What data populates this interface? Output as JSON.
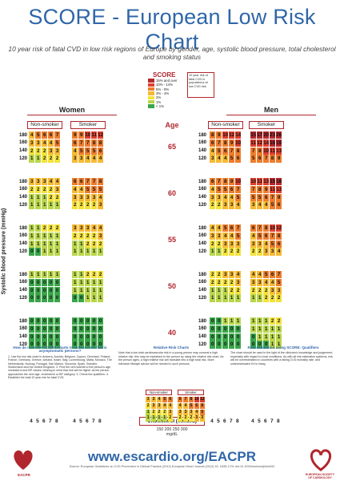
{
  "title": "SCORE - European Low Risk Chart",
  "subtitle": "10 year risk of fatal CVD in low risk regions of Europe by gender, age, systolic blood pressure, total cholesterol and smoking status",
  "score_logo": "SCORE",
  "legend": [
    {
      "label": "15% and over",
      "color": "#b5292e"
    },
    {
      "label": "10% - 14%",
      "color": "#e0402e"
    },
    {
      "label": "5% - 9%",
      "color": "#ee7d2d"
    },
    {
      "label": "3% - 4%",
      "color": "#f6b933"
    },
    {
      "label": "2%",
      "color": "#f4e23a"
    },
    {
      "label": "1%",
      "color": "#b9d64a"
    },
    {
      "label": "< 1%",
      "color": "#3aa54a"
    }
  ],
  "note_box": "10 year risk of fatal CVD in populations at low CVD risk",
  "headers": {
    "women": "Women",
    "men": "Men",
    "non_smoker": "Non-smoker",
    "smoker": "Smoker",
    "age": "Age"
  },
  "ages": [
    "65",
    "60",
    "55",
    "50",
    "40"
  ],
  "sbp_rows": [
    "180",
    "160",
    "140",
    "120"
  ],
  "sbp_label": "Systolic blood pressure (mmHg)",
  "chol_values": [
    "4",
    "5",
    "6",
    "7",
    "8"
  ],
  "chol_label": "Cholesterol (mmol/L)",
  "chol_mg_top": "150 200 250 300",
  "chol_mg_unit": "mg/dL",
  "women": {
    "non_smoker": [
      [
        [
          "4",
          "5",
          "6",
          "6",
          "7"
        ],
        [
          "3",
          "3",
          "4",
          "4",
          "5"
        ],
        [
          "2",
          "2",
          "2",
          "3",
          "3"
        ],
        [
          "1",
          "1",
          "2",
          "2",
          "2"
        ]
      ],
      [
        [
          "3",
          "3",
          "3",
          "4",
          "4"
        ],
        [
          "2",
          "2",
          "2",
          "2",
          "3"
        ],
        [
          "1",
          "1",
          "1",
          "2",
          "2"
        ],
        [
          "1",
          "1",
          "1",
          "1",
          "1"
        ]
      ],
      [
        [
          "1",
          "1",
          "2",
          "2",
          "2"
        ],
        [
          "1",
          "1",
          "1",
          "1",
          "1"
        ],
        [
          "1",
          "1",
          "1",
          "1",
          "1"
        ],
        [
          "0",
          "0",
          "1",
          "1",
          "1"
        ]
      ],
      [
        [
          "1",
          "1",
          "1",
          "1",
          "1"
        ],
        [
          "0",
          "0",
          "0",
          "0",
          "0"
        ],
        [
          "0",
          "0",
          "0",
          "0",
          "0"
        ],
        [
          "0",
          "0",
          "0",
          "0",
          "0"
        ]
      ],
      [
        [
          "0",
          "0",
          "0",
          "0",
          "0"
        ],
        [
          "0",
          "0",
          "0",
          "0",
          "0"
        ],
        [
          "0",
          "0",
          "0",
          "0",
          "0"
        ],
        [
          "0",
          "0",
          "0",
          "0",
          "0"
        ]
      ]
    ],
    "smoker": [
      [
        [
          "9",
          "9",
          "10",
          "11",
          "12"
        ],
        [
          "6",
          "7",
          "7",
          "8",
          "8"
        ],
        [
          "4",
          "5",
          "5",
          "5",
          "6"
        ],
        [
          "3",
          "3",
          "4",
          "4",
          "4"
        ]
      ],
      [
        [
          "6",
          "6",
          "7",
          "7",
          "8"
        ],
        [
          "4",
          "4",
          "5",
          "5",
          "5"
        ],
        [
          "3",
          "3",
          "3",
          "3",
          "4"
        ],
        [
          "2",
          "2",
          "2",
          "2",
          "3"
        ]
      ],
      [
        [
          "3",
          "3",
          "3",
          "4",
          "4"
        ],
        [
          "2",
          "2",
          "2",
          "2",
          "3"
        ],
        [
          "1",
          "1",
          "2",
          "2",
          "2"
        ],
        [
          "1",
          "1",
          "1",
          "1",
          "1"
        ]
      ],
      [
        [
          "1",
          "1",
          "2",
          "2",
          "2"
        ],
        [
          "1",
          "1",
          "1",
          "1",
          "1"
        ],
        [
          "1",
          "1",
          "1",
          "1",
          "1"
        ],
        [
          "0",
          "0",
          "1",
          "1",
          "1"
        ]
      ],
      [
        [
          "0",
          "0",
          "0",
          "0",
          "0"
        ],
        [
          "0",
          "0",
          "0",
          "0",
          "0"
        ],
        [
          "0",
          "0",
          "0",
          "0",
          "0"
        ],
        [
          "0",
          "0",
          "0",
          "0",
          "0"
        ]
      ]
    ]
  },
  "men": {
    "non_smoker": [
      [
        [
          "8",
          "9",
          "10",
          "12",
          "14"
        ],
        [
          "6",
          "7",
          "8",
          "9",
          "10"
        ],
        [
          "4",
          "5",
          "6",
          "7",
          "8"
        ],
        [
          "3",
          "4",
          "4",
          "5",
          "6"
        ]
      ],
      [
        [
          "6",
          "7",
          "8",
          "9",
          "10"
        ],
        [
          "4",
          "5",
          "5",
          "6",
          "7"
        ],
        [
          "3",
          "3",
          "4",
          "4",
          "5"
        ],
        [
          "2",
          "2",
          "3",
          "3",
          "4"
        ]
      ],
      [
        [
          "4",
          "4",
          "5",
          "6",
          "7"
        ],
        [
          "3",
          "3",
          "4",
          "4",
          "5"
        ],
        [
          "2",
          "2",
          "3",
          "3",
          "3"
        ],
        [
          "1",
          "1",
          "2",
          "2",
          "2"
        ]
      ],
      [
        [
          "2",
          "2",
          "3",
          "3",
          "4"
        ],
        [
          "2",
          "2",
          "2",
          "2",
          "3"
        ],
        [
          "1",
          "1",
          "1",
          "2",
          "2"
        ],
        [
          "1",
          "1",
          "1",
          "1",
          "1"
        ]
      ],
      [
        [
          "0",
          "0",
          "1",
          "1",
          "1"
        ],
        [
          "0",
          "0",
          "0",
          "0",
          "0"
        ],
        [
          "0",
          "0",
          "0",
          "0",
          "0"
        ],
        [
          "0",
          "0",
          "0",
          "0",
          "0"
        ]
      ]
    ],
    "smoker": [
      [
        [
          "15",
          "17",
          "20",
          "23",
          "26"
        ],
        [
          "11",
          "12",
          "14",
          "16",
          "19"
        ],
        [
          "7",
          "8",
          "10",
          "11",
          "13"
        ],
        [
          "5",
          "6",
          "7",
          "8",
          "9"
        ]
      ],
      [
        [
          "10",
          "11",
          "13",
          "15",
          "18"
        ],
        [
          "7",
          "8",
          "9",
          "11",
          "13"
        ],
        [
          "5",
          "5",
          "6",
          "7",
          "9"
        ],
        [
          "3",
          "4",
          "4",
          "5",
          "6"
        ]
      ],
      [
        [
          "6",
          "7",
          "8",
          "10",
          "12"
        ],
        [
          "4",
          "5",
          "6",
          "7",
          "8"
        ],
        [
          "3",
          "3",
          "4",
          "5",
          "6"
        ],
        [
          "2",
          "2",
          "3",
          "3",
          "4"
        ]
      ],
      [
        [
          "4",
          "4",
          "5",
          "6",
          "7"
        ],
        [
          "3",
          "3",
          "4",
          "4",
          "5"
        ],
        [
          "2",
          "2",
          "2",
          "3",
          "3"
        ],
        [
          "1",
          "1",
          "2",
          "2",
          "2"
        ]
      ],
      [
        [
          "1",
          "1",
          "1",
          "2",
          "2"
        ],
        [
          "1",
          "1",
          "1",
          "1",
          "1"
        ],
        [
          "0",
          "1",
          "1",
          "1",
          "1"
        ],
        [
          "0",
          "0",
          "0",
          "1",
          "1"
        ]
      ]
    ]
  },
  "panel1_title": "How do I use the SCORE charts to assess CVD risk in asymptomatic persons?",
  "panel1_text": "1. Use the low risk chart in Andorra, Austria, Belgium, Cyprus, Denmark, Finland, France, Germany, Greece, Iceland, Israel, Italy, Luxembourg, Malta, Monaco, The Netherlands, Norway, Portugal, San Marino, Slovenia, Spain, Sweden, Switzerland and the United Kingdom. 2. Find the cell nearest to the person's age, cholesterol and BP values, bearing in mind that risk will be higher as the person approaches the next age, cholesterol or BP category. 3. Check the qualifiers. 4. Establish the total 10 year risk for fatal CVD.",
  "panel2_title": "Relative Risk Charts",
  "panel2_text": "Note that a low total cardiovascular risk in a young person may conceal a high relative risk; this may be explained to the person by using the relative risk chart. As the person ages, a high relative risk will translate into a high total risk. More intensive lifestyle advice will be needed in such persons.",
  "panel3_title": "Risk estimation using SCORE: Qualifiers",
  "panel3_text": "The chart should be used in the light of the clinician's knowledge and judgement, especially with regard to local conditions. As with all risk estimation systems, risk will be overestimated in countries with a falling CVD mortality rate, and underestimated if it is rising.",
  "relative": {
    "non_smoker": [
      [
        "3",
        "3",
        "4",
        "5",
        "6"
      ],
      [
        "2",
        "3",
        "3",
        "4",
        "4"
      ],
      [
        "1",
        "2",
        "2",
        "2",
        "3"
      ],
      [
        "1",
        "1",
        "1",
        "1",
        "2"
      ]
    ],
    "smoker": [
      [
        "6",
        "7",
        "8",
        "10",
        "12"
      ],
      [
        "4",
        "4",
        "5",
        "6",
        "8"
      ],
      [
        "3",
        "3",
        "3",
        "4",
        "5"
      ],
      [
        "2",
        "2",
        "2",
        "3",
        "3"
      ]
    ]
  },
  "url": "www.escardio.org/EACPR",
  "source": "Source: European Guidelines on CVD Prevention in Clinical Practice (2012) European Heart Journal (2012) 33, 1635-1701 doi:10.1093/eurheartj/ehs092",
  "logo_left": "EACPR",
  "logo_right": "EUROPEAN SOCIETY OF CARDIOLOGY"
}
